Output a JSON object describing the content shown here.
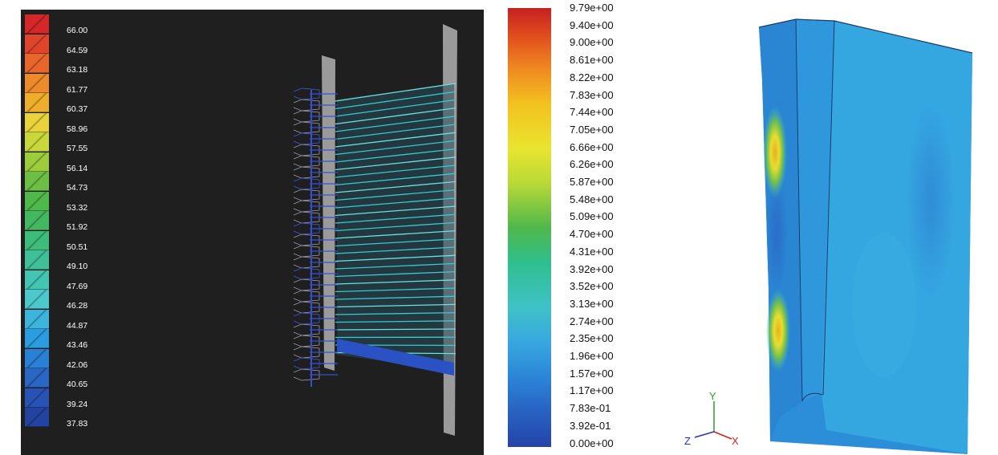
{
  "left_legend": {
    "labels": [
      "66.00",
      "64.59",
      "63.18",
      "61.77",
      "60.37",
      "58.96",
      "57.55",
      "56.14",
      "54.73",
      "53.32",
      "51.92",
      "50.51",
      "49.10",
      "47.69",
      "46.28",
      "44.87",
      "43.46",
      "42.06",
      "40.65",
      "39.24",
      "37.83"
    ],
    "colors": [
      "#d42828",
      "#e0452c",
      "#e8662c",
      "#ec8a2c",
      "#eeae2c",
      "#e8d43a",
      "#c8d83a",
      "#9ccc3c",
      "#6cbe44",
      "#4fb84a",
      "#44b860",
      "#3ebc7a",
      "#40c098",
      "#44c4b2",
      "#4cc8cc",
      "#3cb4dc",
      "#2c9ce0",
      "#2a80d4",
      "#2a66c4",
      "#2852b4",
      "#2442a0"
    ]
  },
  "middle_colorbar": {
    "labels": [
      "9.79e+00",
      "9.40e+00",
      "9.00e+00",
      "8.61e+00",
      "8.22e+00",
      "7.83e+00",
      "7.44e+00",
      "7.05e+00",
      "6.66e+00",
      "6.26e+00",
      "5.87e+00",
      "5.48e+00",
      "5.09e+00",
      "4.70e+00",
      "4.31e+00",
      "3.92e+00",
      "3.52e+00",
      "3.13e+00",
      "2.74e+00",
      "2.35e+00",
      "1.96e+00",
      "1.57e+00",
      "1.17e+00",
      "7.83e-01",
      "3.92e-01",
      "0.00e+00"
    ]
  },
  "axes_triad": {
    "y": "Y",
    "z": "Z",
    "x": "X"
  }
}
